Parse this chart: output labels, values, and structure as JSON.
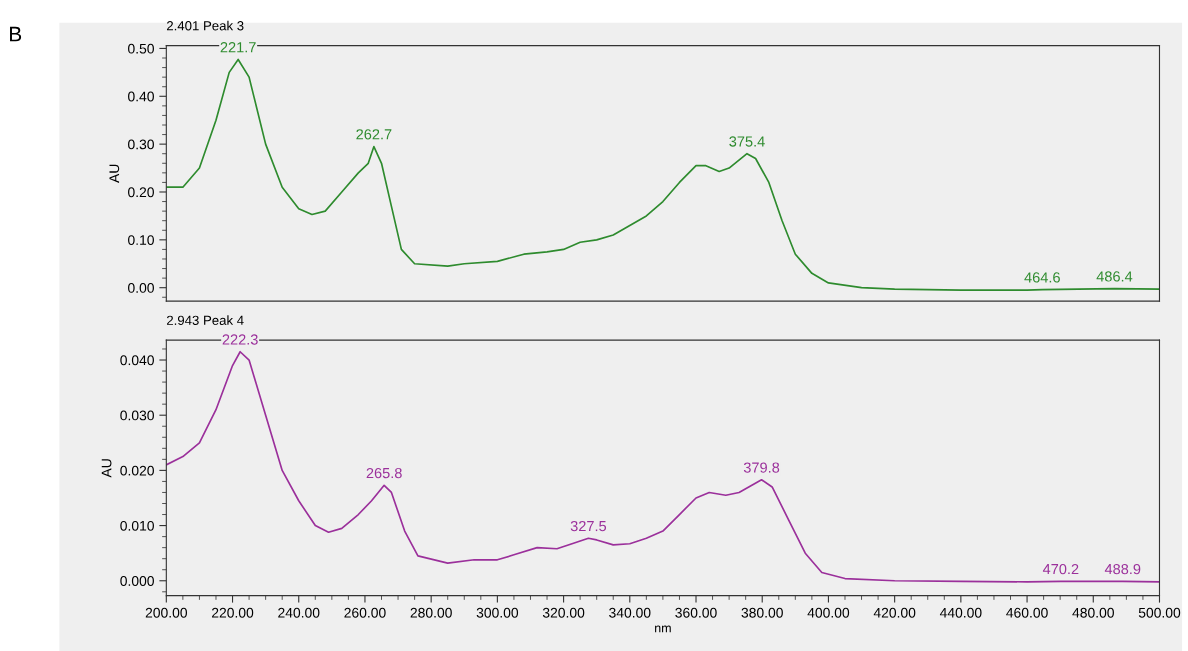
{
  "chart_data": [
    {
      "type": "line",
      "title": "2.401 Peak 3",
      "ylabel": "AU",
      "tick_labels": "y",
      "grid": false,
      "legend": false,
      "xlim": [
        200,
        500
      ],
      "ylim": [
        -0.028,
        0.506
      ],
      "yticks": [
        {
          "value": 0,
          "label": "0.00"
        },
        {
          "value": 0.1,
          "label": "0.10"
        },
        {
          "value": 0.2,
          "label": "0.20"
        },
        {
          "value": 0.3,
          "label": "0.30"
        },
        {
          "value": 0.4,
          "label": "0.40"
        },
        {
          "value": 0.5,
          "label": "0.50"
        }
      ],
      "series": [
        {
          "color": "#2e8b2e",
          "x": [
            200,
            205,
            210,
            215,
            219,
            221.7,
            225,
            230,
            235,
            240,
            244,
            248,
            253,
            258,
            261,
            262.7,
            265,
            268,
            271,
            275,
            285,
            290,
            300,
            308,
            315,
            320,
            325,
            330,
            335,
            340,
            345,
            350,
            355,
            360,
            363,
            367,
            370,
            375.4,
            378,
            382,
            386,
            390,
            395,
            400,
            410,
            420,
            440,
            460,
            464.6,
            486.4,
            500
          ],
          "values": [
            0.21,
            0.21,
            0.25,
            0.35,
            0.45,
            0.477,
            0.44,
            0.3,
            0.21,
            0.165,
            0.153,
            0.16,
            0.2,
            0.24,
            0.26,
            0.295,
            0.26,
            0.17,
            0.08,
            0.05,
            0.045,
            0.05,
            0.055,
            0.07,
            0.075,
            0.08,
            0.095,
            0.1,
            0.11,
            0.13,
            0.15,
            0.18,
            0.22,
            0.255,
            0.255,
            0.243,
            0.25,
            0.28,
            0.27,
            0.22,
            0.14,
            0.07,
            0.03,
            0.01,
            0.0,
            -0.003,
            -0.005,
            -0.005,
            -0.004,
            -0.002,
            -0.003
          ]
        }
      ],
      "annotations": [
        "B",
        {
          "text": "221.7",
          "x": 221.7,
          "y": 0.477
        },
        {
          "text": "262.7",
          "x": 262.7,
          "y": 0.295
        },
        {
          "text": "375.4",
          "x": 375.4,
          "y": 0.28
        },
        {
          "text": "464.6",
          "x": 464.6,
          "y": -0.004
        },
        {
          "text": "486.4",
          "x": 486.4,
          "y": -0.002
        }
      ]
    },
    {
      "type": "line",
      "title": "2.943 Peak 4",
      "ylabel": "AU",
      "xlabel": "nm",
      "grid": false,
      "legend": false,
      "xlim": [
        200,
        500
      ],
      "ylim": [
        -0.0027,
        0.0436
      ],
      "xticks": [
        {
          "value": 200,
          "label": "200.00"
        },
        {
          "value": 220,
          "label": "220.00"
        },
        {
          "value": 240,
          "label": "240.00"
        },
        {
          "value": 260,
          "label": "260.00"
        },
        {
          "value": 280,
          "label": "280.00"
        },
        {
          "value": 300,
          "label": "300.00"
        },
        {
          "value": 320,
          "label": "320.00"
        },
        {
          "value": 340,
          "label": "340.00"
        },
        {
          "value": 360,
          "label": "360.00"
        },
        {
          "value": 380,
          "label": "380.00"
        },
        {
          "value": 400,
          "label": "400.00"
        },
        {
          "value": 420,
          "label": "420.00"
        },
        {
          "value": 440,
          "label": "440.00"
        },
        {
          "value": 460,
          "label": "460.00"
        },
        {
          "value": 480,
          "label": "480.00"
        },
        {
          "value": 500,
          "label": "500.00"
        }
      ],
      "yticks": [
        {
          "value": 0,
          "label": "0.000"
        },
        {
          "value": 0.01,
          "label": "0.010"
        },
        {
          "value": 0.02,
          "label": "0.020"
        },
        {
          "value": 0.03,
          "label": "0.030"
        },
        {
          "value": 0.04,
          "label": "0.040"
        }
      ],
      "series": [
        {
          "color": "#9b309b",
          "x": [
            200,
            205,
            210,
            215,
            220,
            222.3,
            225,
            230,
            235,
            240,
            245,
            249,
            253,
            258,
            262,
            265.8,
            268,
            272,
            276,
            285,
            293,
            300,
            305,
            312,
            318,
            323,
            327.5,
            330,
            335,
            340,
            345,
            350,
            355,
            360,
            364,
            369,
            373,
            379.8,
            383,
            388,
            393,
            398,
            405,
            420,
            440,
            460,
            470.2,
            488.9,
            500
          ],
          "values": [
            0.021,
            0.0225,
            0.025,
            0.031,
            0.039,
            0.0415,
            0.04,
            0.03,
            0.02,
            0.0145,
            0.01,
            0.0088,
            0.0095,
            0.012,
            0.0145,
            0.0173,
            0.016,
            0.009,
            0.0045,
            0.0032,
            0.0038,
            0.0038,
            0.0047,
            0.006,
            0.0058,
            0.0068,
            0.0077,
            0.0074,
            0.0065,
            0.0067,
            0.0077,
            0.009,
            0.012,
            0.015,
            0.016,
            0.0155,
            0.016,
            0.0183,
            0.017,
            0.011,
            0.005,
            0.0015,
            0.0004,
            0.0,
            -0.0001,
            -0.0002,
            -0.0001,
            -0.0001,
            -0.0002
          ]
        }
      ],
      "annotations": [
        {
          "text": "222.3",
          "x": 222.3,
          "y": 0.0415
        },
        {
          "text": "265.8",
          "x": 265.8,
          "y": 0.0173
        },
        {
          "text": "327.5",
          "x": 327.5,
          "y": 0.0077
        },
        {
          "text": "379.8",
          "x": 379.8,
          "y": 0.0183
        },
        {
          "text": "470.2",
          "x": 470.2,
          "y": -0.0001
        },
        {
          "text": "488.9",
          "x": 488.9,
          "y": -0.0001
        }
      ]
    }
  ]
}
